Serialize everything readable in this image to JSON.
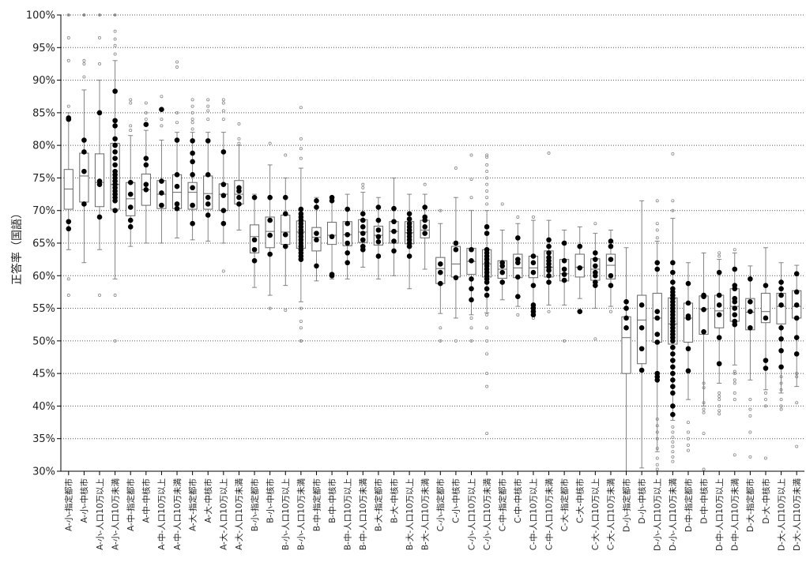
{
  "chart_data": {
    "type": "box",
    "ylabel": "正答率（国語）",
    "ylim": [
      30,
      100
    ],
    "yticks": [
      100,
      95,
      90,
      85,
      80,
      75,
      70,
      65,
      60,
      55,
      50,
      45,
      40,
      35,
      30
    ],
    "ytick_labels": [
      "100%",
      "95%",
      "90%",
      "85%",
      "80%",
      "75%",
      "70%",
      "65%",
      "60%",
      "55%",
      "50%",
      "45%",
      "40%",
      "35%",
      "30%"
    ],
    "grid": "horizontal-dotted",
    "categories": [
      "A-小-指定都市",
      "A-小-中核市",
      "A-小-人口10万以上",
      "A-小-人口10万未満",
      "A-中-指定都市",
      "A-中-中核市",
      "A-中-人口10万以上",
      "A-中-人口10万未満",
      "A-大-指定都市",
      "A-大-中核市",
      "A-大-人口10万以上",
      "A-大-人口10万未満",
      "B-小-指定都市",
      "B-小-中核市",
      "B-小-人口10万以上",
      "B-小-人口10万未満",
      "B-中-指定都市",
      "B-中-中核市",
      "B-中-人口10万以上",
      "B-中-人口10万未満",
      "B-大-指定都市",
      "B-大-中核市",
      "B-大-人口10万以上",
      "B-大-人口10万未満",
      "C-小-指定都市",
      "C-小-中核市",
      "C-小-人口10万以上",
      "C-小-人口10万未満",
      "C-中-指定都市",
      "C-中-中核市",
      "C-中-人口10万以上",
      "C-中-人口10万未満",
      "C-大-指定都市",
      "C-大-中核市",
      "C-大-人口10万以上",
      "C-大-人口10万未満",
      "D-小-指定都市",
      "D-小-中核市",
      "D-小-人口10万以上",
      "D-小-人口10万未満",
      "D-中-指定都市",
      "D-中-中核市",
      "D-中-人口10万以上",
      "D-中-人口10万未満",
      "D-大-指定都市",
      "D-大-中核市",
      "D-大-人口10万以上",
      "D-大-人口10万未満"
    ],
    "boxes": [
      {
        "min": 64,
        "q1": 70.2,
        "median": 73.3,
        "q3": 76.3,
        "max": 85,
        "outliers": [
          57,
          59.5,
          86,
          93,
          96.5,
          100
        ],
        "points": [
          84,
          84.2,
          68.3,
          67.2
        ]
      },
      {
        "min": 62,
        "q1": 71.3,
        "median": 75.3,
        "q3": 78.8,
        "max": 88.5,
        "outliers": [
          90.5,
          92.5,
          93,
          100,
          100
        ],
        "points": [
          80.8,
          79,
          76,
          71
        ]
      },
      {
        "min": 64,
        "q1": 70.6,
        "median": 74.3,
        "q3": 78.7,
        "max": 90,
        "outliers": [
          57,
          92.5,
          96.5,
          100
        ],
        "points": [
          85,
          74.5,
          74,
          69
        ]
      },
      {
        "min": 59.5,
        "q1": 70.2,
        "median": 74,
        "q3": 80.3,
        "max": 93,
        "outliers": [
          50,
          57,
          94,
          95.3,
          96.3,
          97.5,
          100
        ],
        "points": [
          88.3,
          83.8,
          83,
          81,
          80,
          79,
          78,
          77,
          76,
          75.5,
          75,
          74.5,
          74,
          73.5,
          73,
          72.5,
          72,
          71.5,
          70
        ]
      },
      {
        "min": 64.5,
        "q1": 69.2,
        "median": 71.8,
        "q3": 74.3,
        "max": 81.5,
        "outliers": [
          82.3,
          83,
          86.5,
          87
        ],
        "points": [
          74.3,
          72.5,
          70.5,
          68.5,
          67.5
        ]
      },
      {
        "min": 65,
        "q1": 70.8,
        "median": 73.2,
        "q3": 75.6,
        "max": 82.3,
        "outliers": [
          84,
          85,
          86.5
        ],
        "points": [
          83.2,
          78,
          77,
          74,
          73.2
        ]
      },
      {
        "min": 65,
        "q1": 70.3,
        "median": 72.5,
        "q3": 74.6,
        "max": 80.8,
        "outliers": [
          83,
          84,
          85.5,
          87.5
        ],
        "points": [
          85.5,
          74.5,
          72.7,
          70.8
        ]
      },
      {
        "min": 65.8,
        "q1": 70.3,
        "median": 72.8,
        "q3": 75.5,
        "max": 82,
        "outliers": [
          83.5,
          85,
          92,
          92.8
        ],
        "points": [
          80.8,
          75.5,
          73.7,
          71,
          70.3
        ]
      },
      {
        "min": 65.5,
        "q1": 70.2,
        "median": 72.8,
        "q3": 74.3,
        "max": 82,
        "outliers": [
          82.5,
          83.5,
          84,
          85,
          86,
          87
        ],
        "points": [
          80.7,
          78.8,
          77.5,
          75.5,
          73.5,
          70.8,
          68
        ]
      },
      {
        "min": 65.3,
        "q1": 70.2,
        "median": 72.6,
        "q3": 75.3,
        "max": 82,
        "outliers": [
          84,
          85.3,
          86,
          87
        ],
        "points": [
          80.7,
          75.5,
          72,
          71,
          69.3
        ]
      },
      {
        "min": 65,
        "q1": 70,
        "median": 72.5,
        "q3": 74.1,
        "max": 82,
        "outliers": [
          60.7,
          84,
          85.3,
          86.5,
          87
        ],
        "points": [
          79,
          74,
          72.3,
          70,
          68
        ]
      },
      {
        "min": 67,
        "q1": 71,
        "median": 72.5,
        "q3": 74.6,
        "max": 80,
        "outliers": [
          80.3,
          81,
          83.3
        ],
        "points": [
          73.5,
          73,
          72,
          71
        ]
      },
      {
        "min": 58.2,
        "q1": 63.5,
        "median": 66,
        "q3": 67.8,
        "max": 72.5,
        "outliers": [],
        "points": [
          72,
          65.5,
          64,
          62.3
        ]
      },
      {
        "min": 57,
        "q1": 64.3,
        "median": 66.8,
        "q3": 69,
        "max": 77,
        "outliers": [
          80.3,
          55
        ],
        "points": [
          72,
          68.5,
          66.2,
          63.3
        ]
      },
      {
        "min": 58.5,
        "q1": 64.8,
        "median": 66.7,
        "q3": 69.3,
        "max": 75,
        "outliers": [
          54.7,
          78.5
        ],
        "points": [
          72,
          69.5,
          66.3,
          64.5
        ]
      },
      {
        "min": 56,
        "q1": 64.2,
        "median": 66.7,
        "q3": 68.4,
        "max": 76.5,
        "outliers": [
          50,
          50,
          52,
          53,
          55,
          78,
          79.5,
          81,
          85.8
        ],
        "points": [
          70.2,
          69.5,
          69,
          68.5,
          68,
          67.5,
          67,
          66.5,
          66,
          65.5,
          65,
          64.5,
          64,
          63.5,
          63,
          62.5
        ]
      },
      {
        "min": 59.2,
        "q1": 63.8,
        "median": 65.9,
        "q3": 67.4,
        "max": 72,
        "outliers": [],
        "points": [
          71.5,
          70.5,
          66.5,
          65.5,
          61.5
        ]
      },
      {
        "min": 59.5,
        "q1": 64.8,
        "median": 66.2,
        "q3": 68.2,
        "max": 72,
        "outliers": [],
        "points": [
          72,
          71.5,
          66,
          60,
          60.2
        ]
      },
      {
        "min": 59.5,
        "q1": 64.6,
        "median": 66.3,
        "q3": 68.3,
        "max": 72.5,
        "outliers": [],
        "points": [
          70.2,
          68,
          66.3,
          65,
          63.5,
          62
        ]
      },
      {
        "min": 61.3,
        "q1": 65.1,
        "median": 66.7,
        "q3": 68.6,
        "max": 72.8,
        "outliers": [
          73.5,
          74
        ],
        "points": [
          69.5,
          68.5,
          67.5,
          66.5,
          65.5,
          64.5,
          64
        ]
      },
      {
        "min": 59.5,
        "q1": 64.7,
        "median": 66.2,
        "q3": 67.6,
        "max": 72,
        "outliers": [],
        "points": [
          70.5,
          68.5,
          67,
          66,
          65.2,
          63
        ]
      },
      {
        "min": 60,
        "q1": 65,
        "median": 66.8,
        "q3": 68.3,
        "max": 75,
        "outliers": [],
        "points": [
          70.3,
          68.3,
          66.8,
          65.3,
          63.8
        ]
      },
      {
        "min": 58,
        "q1": 64.9,
        "median": 66.6,
        "q3": 68.3,
        "max": 72.5,
        "outliers": [],
        "points": [
          69.5,
          68.7,
          68,
          67.5,
          67,
          66.5,
          66,
          65.5,
          65,
          64.5,
          63
        ]
      },
      {
        "min": 61,
        "q1": 65.8,
        "median": 67,
        "q3": 68.5,
        "max": 72.5,
        "outliers": [
          74
        ],
        "points": [
          70.5,
          69,
          68.5,
          67.5,
          66.5
        ]
      },
      {
        "min": 54.2,
        "q1": 58.8,
        "median": 61.1,
        "q3": 62.8,
        "max": 68,
        "outliers": [
          50,
          52,
          70
        ],
        "points": [
          61.8,
          60.5,
          58.8
        ]
      },
      {
        "min": 53.5,
        "q1": 59.8,
        "median": 61.8,
        "q3": 64.5,
        "max": 72,
        "outliers": [
          50,
          76.5
        ],
        "points": [
          65,
          64,
          59.7
        ]
      },
      {
        "min": 54,
        "q1": 60.2,
        "median": 62.2,
        "q3": 64.2,
        "max": 70,
        "outliers": [
          50,
          52,
          53.5,
          72,
          74.8,
          78.5
        ],
        "points": [
          64,
          62.3,
          59.5,
          58,
          56.3
        ]
      },
      {
        "min": 54.3,
        "q1": 59.8,
        "median": 61.8,
        "q3": 64,
        "max": 70,
        "outliers": [
          35.8,
          43,
          45,
          48,
          50,
          52,
          54,
          71,
          72,
          73,
          74,
          75,
          76,
          77,
          78.2,
          78.5
        ],
        "points": [
          67.5,
          66.5,
          64,
          63.5,
          63,
          62.5,
          62,
          61.5,
          61,
          60.5,
          60,
          59.5,
          59,
          58,
          57
        ]
      },
      {
        "min": 56.3,
        "q1": 59.6,
        "median": 61,
        "q3": 62.3,
        "max": 67,
        "outliers": [
          71
        ],
        "points": [
          62,
          61.5,
          60.5,
          59
        ]
      },
      {
        "min": 55.3,
        "q1": 59.7,
        "median": 61.2,
        "q3": 63.3,
        "max": 68,
        "outliers": [
          54,
          69
        ],
        "points": [
          65.8,
          62.5,
          62,
          59.8,
          56.8
        ]
      },
      {
        "min": 55.2,
        "q1": 59.7,
        "median": 61.2,
        "q3": 63,
        "max": 68.5,
        "outliers": [
          53.5,
          54,
          69
        ],
        "points": [
          63,
          62,
          60.5,
          58.5,
          55.5,
          55,
          54.5,
          54
        ]
      },
      {
        "min": 55.5,
        "q1": 59.8,
        "median": 61.3,
        "q3": 63.8,
        "max": 68.5,
        "outliers": [
          54.5,
          78.8
        ],
        "points": [
          65.5,
          64.5,
          63.5,
          62.8,
          62.3,
          61.8,
          61.3,
          60.8,
          60,
          59
        ]
      },
      {
        "min": 55.5,
        "q1": 59.2,
        "median": 60.3,
        "q3": 62.5,
        "max": 67,
        "outliers": [
          50
        ],
        "points": [
          65,
          62.3,
          61,
          60.2,
          59.3
        ]
      },
      {
        "min": 56.5,
        "q1": 59.8,
        "median": 61.3,
        "q3": 63.3,
        "max": 67.5,
        "outliers": [],
        "points": [
          64.5,
          61.2,
          54.5
        ]
      },
      {
        "min": 55,
        "q1": 59.3,
        "median": 61,
        "q3": 62.6,
        "max": 66.5,
        "outliers": [
          50.3,
          68
        ],
        "points": [
          63.5,
          62.5,
          61.5,
          60.5,
          60,
          59,
          58.5
        ]
      },
      {
        "min": 55.3,
        "q1": 59.5,
        "median": 61.6,
        "q3": 63.3,
        "max": 67,
        "outliers": [
          54.5
        ],
        "points": [
          65.3,
          64.5,
          62.5,
          60,
          58.5
        ]
      },
      {
        "min": 30,
        "q1": 45,
        "median": 50.5,
        "q3": 53.7,
        "max": 64.3,
        "outliers": [],
        "points": [
          56,
          55,
          53.5,
          52
        ]
      },
      {
        "min": 30.5,
        "q1": 46.5,
        "median": 53.2,
        "q3": 57,
        "max": 71.5,
        "outliers": [],
        "points": [
          55.5,
          52,
          48.8,
          45.5
        ]
      },
      {
        "min": 33,
        "q1": 49.8,
        "median": 53.5,
        "q3": 57.3,
        "max": 65.3,
        "outliers": [
          30.3,
          31,
          32,
          33.5,
          35,
          36,
          37,
          38,
          65.8,
          67,
          68,
          71.5
        ],
        "points": [
          62,
          61,
          54.5,
          53.5,
          51,
          49.8,
          45,
          44.5,
          44
        ]
      },
      {
        "min": 37.8,
        "q1": 49.5,
        "median": 52.6,
        "q3": 56.6,
        "max": 68.8,
        "outliers": [
          31.5,
          32.2,
          33,
          33.8,
          34.5,
          35.2,
          36,
          36.8,
          70,
          71.5,
          78.7
        ],
        "points": [
          62,
          60.5,
          59,
          58,
          57.5,
          57,
          56.5,
          56,
          55.5,
          55,
          54.5,
          54,
          53.5,
          53,
          52.5,
          52,
          51.5,
          51,
          50.5,
          50,
          49,
          48,
          47,
          46,
          45,
          44,
          43,
          42,
          40,
          38.7
        ]
      },
      {
        "min": 41,
        "q1": 49.8,
        "median": 53.5,
        "q3": 55.8,
        "max": 62,
        "outliers": [
          33.2,
          34,
          35,
          36,
          37.5
        ],
        "points": [
          58.8,
          55.8,
          53.8,
          53.5,
          48.8,
          45.4
        ]
      },
      {
        "min": 40,
        "q1": 51,
        "median": 54.9,
        "q3": 56.9,
        "max": 63.5,
        "outliers": [
          30.3,
          35.8,
          39,
          39.5,
          40.5,
          42.8,
          43.5
        ],
        "points": [
          57,
          56.8,
          54.8,
          51.4
        ]
      },
      {
        "min": 43.5,
        "q1": 52,
        "median": 54.6,
        "q3": 57,
        "max": 62.5,
        "outliers": [
          38.8,
          39.3,
          40,
          41,
          41.5,
          42,
          63,
          63.5
        ],
        "points": [
          60.5,
          57,
          55.5,
          54,
          50.5,
          46.5
        ]
      },
      {
        "min": 46.3,
        "q1": 53,
        "median": 55.3,
        "q3": 58,
        "max": 63.5,
        "outliers": [
          32.5,
          41,
          42,
          43.5,
          44,
          45,
          45.3,
          64
        ],
        "points": [
          61,
          58.5,
          58,
          56.5,
          56,
          55,
          54,
          53,
          52.5
        ]
      },
      {
        "min": 44,
        "q1": 51.7,
        "median": 54.4,
        "q3": 56.5,
        "max": 61.5,
        "outliers": [
          32.2,
          36,
          38.5,
          39.5,
          41
        ],
        "points": [
          59.5,
          56,
          54.5,
          52
        ]
      },
      {
        "min": 42.5,
        "q1": 52.8,
        "median": 54.5,
        "q3": 57.3,
        "max": 64.3,
        "outliers": [
          32,
          40,
          41,
          42
        ],
        "points": [
          58.5,
          53.5,
          47,
          45.8
        ]
      },
      {
        "min": 42,
        "q1": 52.6,
        "median": 55.3,
        "q3": 57.3,
        "max": 62,
        "outliers": [
          39.5,
          40,
          41,
          42.5,
          43.5,
          44.5
        ],
        "points": [
          59,
          58,
          57,
          55.5,
          52,
          50.3,
          48.5,
          46
        ]
      },
      {
        "min": 43,
        "q1": 53.5,
        "median": 55.3,
        "q3": 57.7,
        "max": 61.6,
        "outliers": [
          33.8,
          40.5,
          44.5,
          45
        ],
        "points": [
          60.3,
          57.5,
          55.5,
          53.5,
          50.5,
          48
        ]
      }
    ]
  }
}
